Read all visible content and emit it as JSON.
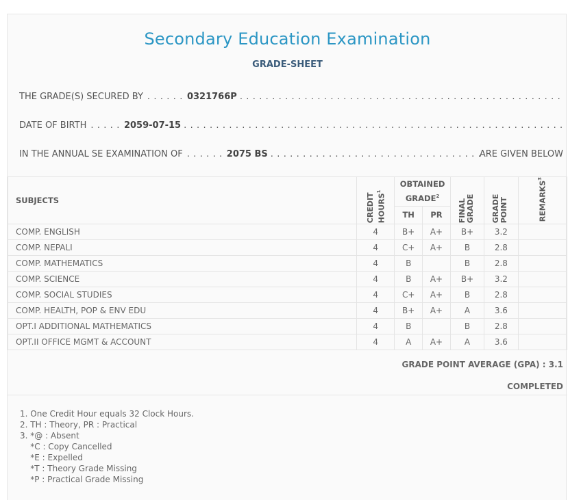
{
  "header": {
    "title": "Secondary Education Examination",
    "subtitle": "GRADE-SHEET"
  },
  "info": {
    "secured_by_label": "THE GRADE(S) SECURED BY",
    "secured_by_lead": ". . . . . .",
    "symbol_no": "0321766P",
    "dob_label": "DATE OF BIRTH",
    "dob_lead": ". . . . .",
    "dob": "2059-07-15",
    "exam_label": "IN THE ANNUAL SE EXAMINATION OF",
    "exam_lead": ". . . . . .",
    "exam_year": "2075 BS",
    "exam_tail": "ARE GIVEN BELOW"
  },
  "table": {
    "headers": {
      "subjects": "SUBJECTS",
      "credit_hours": "CREDIT HOURS",
      "credit_hours_sup": "1",
      "obtained_grade": "OBTAINED GRADE",
      "obtained_grade_sup": "2",
      "th": "TH",
      "pr": "PR",
      "final_grade": "FINAL GRADE",
      "grade_point": "GRADE POINT",
      "remarks": "REMARKS",
      "remarks_sup": "3"
    },
    "rows": [
      {
        "subject": "COMP. ENGLISH",
        "credit": "4",
        "th": "B+",
        "pr": "A+",
        "final": "B+",
        "gp": "3.2",
        "remarks": ""
      },
      {
        "subject": "COMP. NEPALI",
        "credit": "4",
        "th": "C+",
        "pr": "A+",
        "final": "B",
        "gp": "2.8",
        "remarks": ""
      },
      {
        "subject": "COMP. MATHEMATICS",
        "credit": "4",
        "th": "B",
        "pr": "",
        "final": "B",
        "gp": "2.8",
        "remarks": ""
      },
      {
        "subject": "COMP. SCIENCE",
        "credit": "4",
        "th": "B",
        "pr": "A+",
        "final": "B+",
        "gp": "3.2",
        "remarks": ""
      },
      {
        "subject": "COMP. SOCIAL STUDIES",
        "credit": "4",
        "th": "C+",
        "pr": "A+",
        "final": "B",
        "gp": "2.8",
        "remarks": ""
      },
      {
        "subject": "COMP. HEALTH, POP & ENV EDU",
        "credit": "4",
        "th": "B+",
        "pr": "A+",
        "final": "A",
        "gp": "3.6",
        "remarks": ""
      },
      {
        "subject": "OPT.I ADDITIONAL MATHEMATICS",
        "credit": "4",
        "th": "B",
        "pr": "",
        "final": "B",
        "gp": "2.8",
        "remarks": ""
      },
      {
        "subject": "OPT.II OFFICE MGMT & ACCOUNT",
        "credit": "4",
        "th": "A",
        "pr": "A+",
        "final": "A",
        "gp": "3.6",
        "remarks": ""
      }
    ]
  },
  "summary": {
    "gpa": "GRADE POINT AVERAGE (GPA) : 3.1",
    "status": "COMPLETED"
  },
  "notes": [
    "1. One Credit Hour equals 32 Clock Hours.",
    "2. TH : Theory, PR : Practical",
    "3. *@ : Absent",
    "    *C : Copy Cancelled",
    "    *E : Expelled",
    "    *T : Theory Grade Missing",
    "    *P : Practical Grade Missing"
  ],
  "colors": {
    "title": "#2b96c4",
    "subtitle": "#3a5b7a",
    "border": "#e4e4e4",
    "background": "#fafafa"
  }
}
